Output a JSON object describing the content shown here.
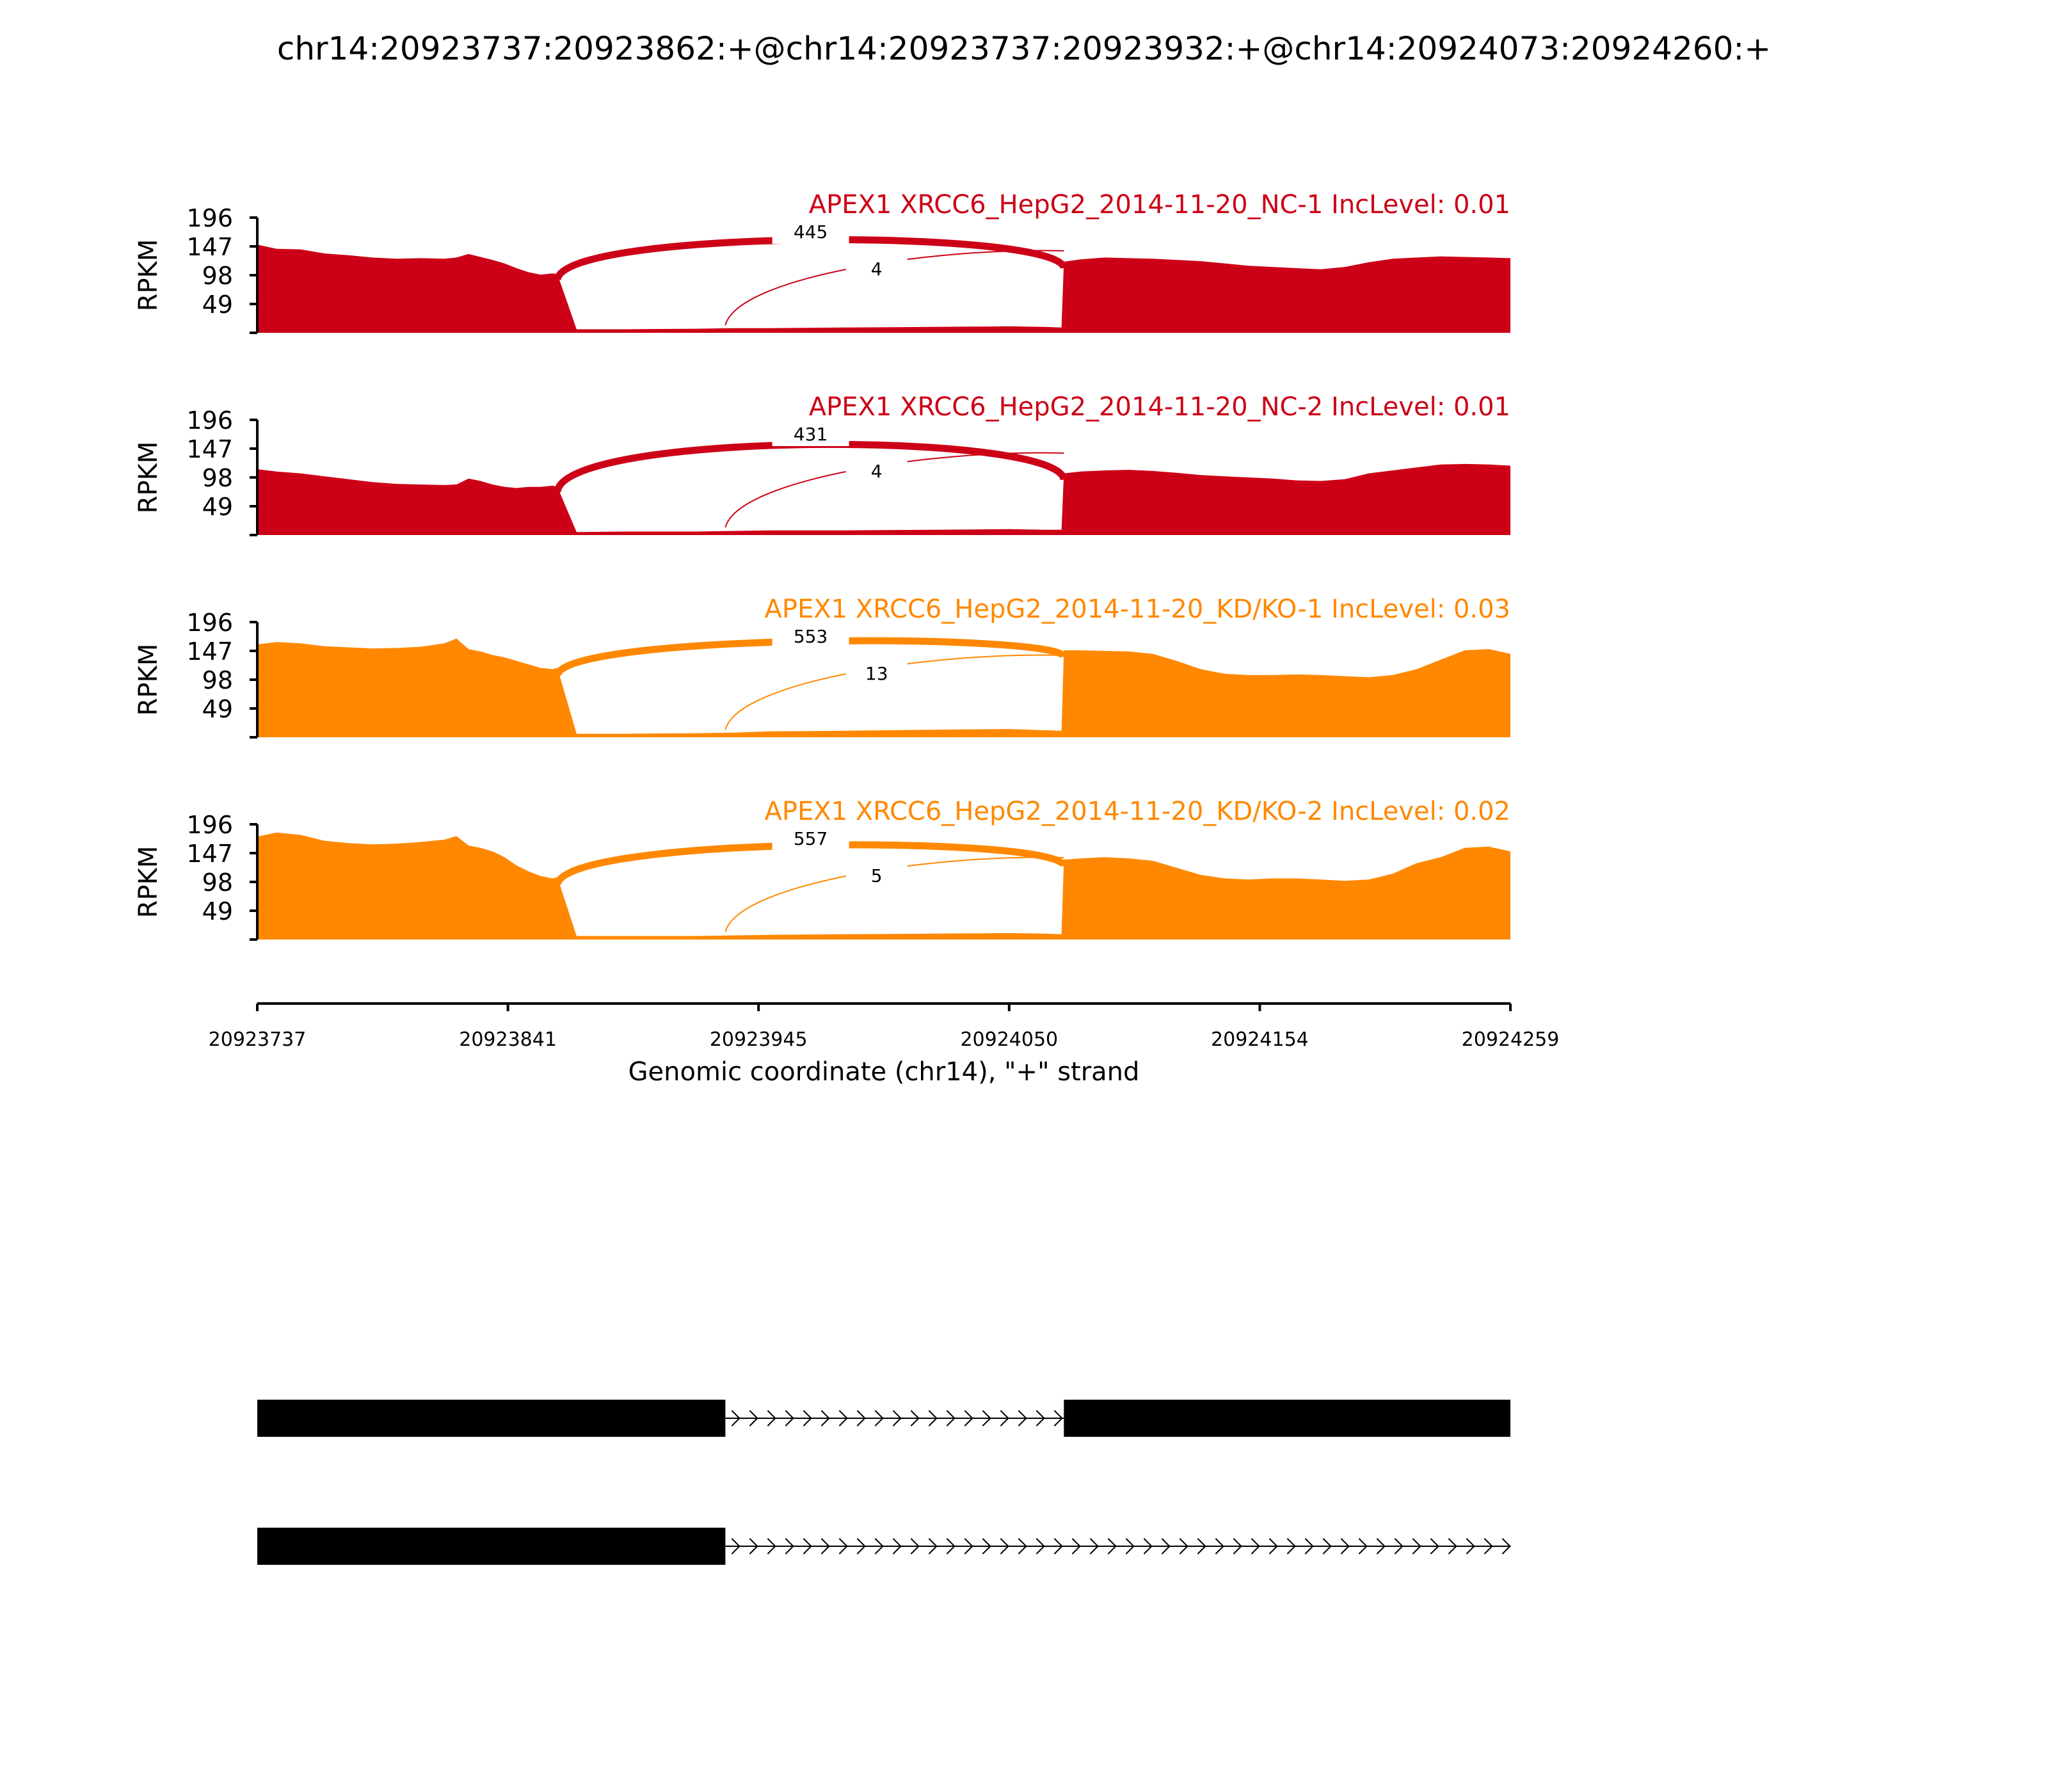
{
  "title": "chr14:20923737:20923862:+@chr14:20923737:20923932:+@chr14:20924073:20924260:+",
  "chart_data": {
    "type": "area",
    "xlabel": "Genomic coordinate (chr14), \"+\" strand",
    "ylabel": "RPKM",
    "xlim": [
      20923737,
      20924259
    ],
    "ylim": [
      0,
      196
    ],
    "xticks": [
      "20923737",
      "20923841",
      "20923945",
      "20924050",
      "20924154",
      "20924259"
    ],
    "yticks": [
      "196",
      "147",
      "98",
      "49"
    ],
    "grid": false,
    "colors": {
      "nc": "#cc0016",
      "kd": "#ff8800"
    },
    "tracks": [
      {
        "label": "APEX1 XRCC6_HepG2_2014-11-20_NC-1 IncLevel: 0.01",
        "color": "#cc0016",
        "coverage_x": [
          20923737,
          20923745,
          20923755,
          20923765,
          20923775,
          20923785,
          20923795,
          20923805,
          20923815,
          20923820,
          20923825,
          20923830,
          20923835,
          20923840,
          20923845,
          20923850,
          20923855,
          20923860,
          20923862,
          20923870,
          20923890,
          20923920,
          20923935,
          20923950,
          20923980,
          20924020,
          20924050,
          20924065,
          20924072,
          20924073,
          20924080,
          20924090,
          20924100,
          20924110,
          20924120,
          20924130,
          20924140,
          20924150,
          20924160,
          20924170,
          20924180,
          20924190,
          20924200,
          20924210,
          20924220,
          20924230,
          20924240,
          20924250,
          20924259
        ],
        "coverage_y": [
          150,
          143,
          142,
          135,
          132,
          128,
          126,
          127,
          126,
          128,
          134,
          129,
          124,
          118,
          110,
          103,
          99,
          101,
          100,
          6,
          6,
          7,
          8,
          8,
          9,
          10,
          11,
          10,
          9,
          121,
          125,
          128,
          127,
          126,
          124,
          122,
          118,
          114,
          112,
          110,
          108,
          112,
          120,
          126,
          128,
          130,
          129,
          128,
          127
        ],
        "junctions": [
          {
            "start": 20923862,
            "end": 20924073,
            "count": "445"
          },
          {
            "start": 20923932,
            "end": 20924073,
            "count": "4"
          }
        ]
      },
      {
        "label": "APEX1 XRCC6_HepG2_2014-11-20_NC-2 IncLevel: 0.01",
        "color": "#cc0016",
        "coverage_x": [
          20923737,
          20923745,
          20923755,
          20923765,
          20923775,
          20923785,
          20923795,
          20923805,
          20923815,
          20923820,
          20923825,
          20923830,
          20923835,
          20923840,
          20923845,
          20923850,
          20923855,
          20923860,
          20923862,
          20923870,
          20923890,
          20923920,
          20923935,
          20923950,
          20923980,
          20924020,
          20924050,
          20924065,
          20924072,
          20924073,
          20924080,
          20924090,
          20924100,
          20924110,
          20924120,
          20924130,
          20924140,
          20924150,
          20924160,
          20924170,
          20924180,
          20924190,
          20924200,
          20924210,
          20924220,
          20924230,
          20924240,
          20924250,
          20924259
        ],
        "coverage_y": [
          112,
          108,
          105,
          100,
          95,
          90,
          87,
          86,
          85,
          86,
          96,
          92,
          86,
          82,
          80,
          82,
          82,
          84,
          82,
          5,
          6,
          6,
          7,
          8,
          8,
          9,
          10,
          9,
          9,
          105,
          108,
          110,
          111,
          109,
          106,
          102,
          100,
          98,
          96,
          93,
          92,
          95,
          105,
          110,
          115,
          120,
          121,
          120,
          118
        ],
        "junctions": [
          {
            "start": 20923862,
            "end": 20924073,
            "count": "431"
          },
          {
            "start": 20923932,
            "end": 20924073,
            "count": "4"
          }
        ]
      },
      {
        "label": "APEX1 XRCC6_HepG2_2014-11-20_KD/KO-1 IncLevel: 0.03",
        "color": "#ff8800",
        "coverage_x": [
          20923737,
          20923745,
          20923755,
          20923765,
          20923775,
          20923785,
          20923795,
          20923805,
          20923815,
          20923820,
          20923825,
          20923830,
          20923835,
          20923840,
          20923845,
          20923850,
          20923855,
          20923860,
          20923862,
          20923870,
          20923890,
          20923920,
          20923935,
          20923950,
          20923980,
          20924020,
          20924050,
          20924065,
          20924072,
          20924073,
          20924080,
          20924090,
          20924100,
          20924110,
          20924120,
          20924130,
          20924140,
          20924150,
          20924160,
          20924170,
          20924180,
          20924190,
          20924200,
          20924210,
          20924220,
          20924230,
          20924240,
          20924250,
          20924259
        ],
        "coverage_y": [
          158,
          162,
          160,
          155,
          153,
          151,
          152,
          154,
          160,
          168,
          150,
          146,
          140,
          136,
          130,
          124,
          118,
          116,
          118,
          6,
          6,
          7,
          8,
          10,
          11,
          13,
          14,
          12,
          11,
          148,
          148,
          147,
          146,
          142,
          130,
          116,
          108,
          106,
          106,
          107,
          106,
          104,
          102,
          106,
          116,
          132,
          148,
          150,
          142
        ],
        "junctions": [
          {
            "start": 20923862,
            "end": 20924073,
            "count": "553"
          },
          {
            "start": 20923932,
            "end": 20924073,
            "count": "13"
          }
        ]
      },
      {
        "label": "APEX1 XRCC6_HepG2_2014-11-20_KD/KO-2 IncLevel: 0.02",
        "color": "#ff8800",
        "coverage_x": [
          20923737,
          20923745,
          20923755,
          20923765,
          20923775,
          20923785,
          20923795,
          20923805,
          20923815,
          20923820,
          20923825,
          20923830,
          20923835,
          20923840,
          20923845,
          20923850,
          20923855,
          20923860,
          20923862,
          20923870,
          20923890,
          20923920,
          20923935,
          20923950,
          20923980,
          20924020,
          20924050,
          20924065,
          20924072,
          20924073,
          20924080,
          20924090,
          20924100,
          20924110,
          20924120,
          20924130,
          20924140,
          20924150,
          20924160,
          20924170,
          20924180,
          20924190,
          20924200,
          20924210,
          20924220,
          20924230,
          20924240,
          20924250,
          20924259
        ],
        "coverage_y": [
          175,
          182,
          178,
          168,
          164,
          162,
          163,
          166,
          170,
          176,
          160,
          156,
          150,
          140,
          126,
          116,
          108,
          104,
          106,
          6,
          6,
          6,
          7,
          8,
          9,
          10,
          11,
          10,
          9,
          136,
          138,
          140,
          138,
          134,
          122,
          110,
          104,
          102,
          104,
          104,
          102,
          100,
          102,
          112,
          130,
          140,
          156,
          158,
          150
        ],
        "junctions": [
          {
            "start": 20923862,
            "end": 20924073,
            "count": "557"
          },
          {
            "start": 20923932,
            "end": 20924073,
            "count": "5"
          }
        ]
      }
    ],
    "isoforms": [
      {
        "exons": [
          [
            20923737,
            20923932
          ],
          [
            20924073,
            20924259
          ]
        ]
      },
      {
        "exons": [
          [
            20923737,
            20923932
          ]
        ]
      }
    ]
  }
}
